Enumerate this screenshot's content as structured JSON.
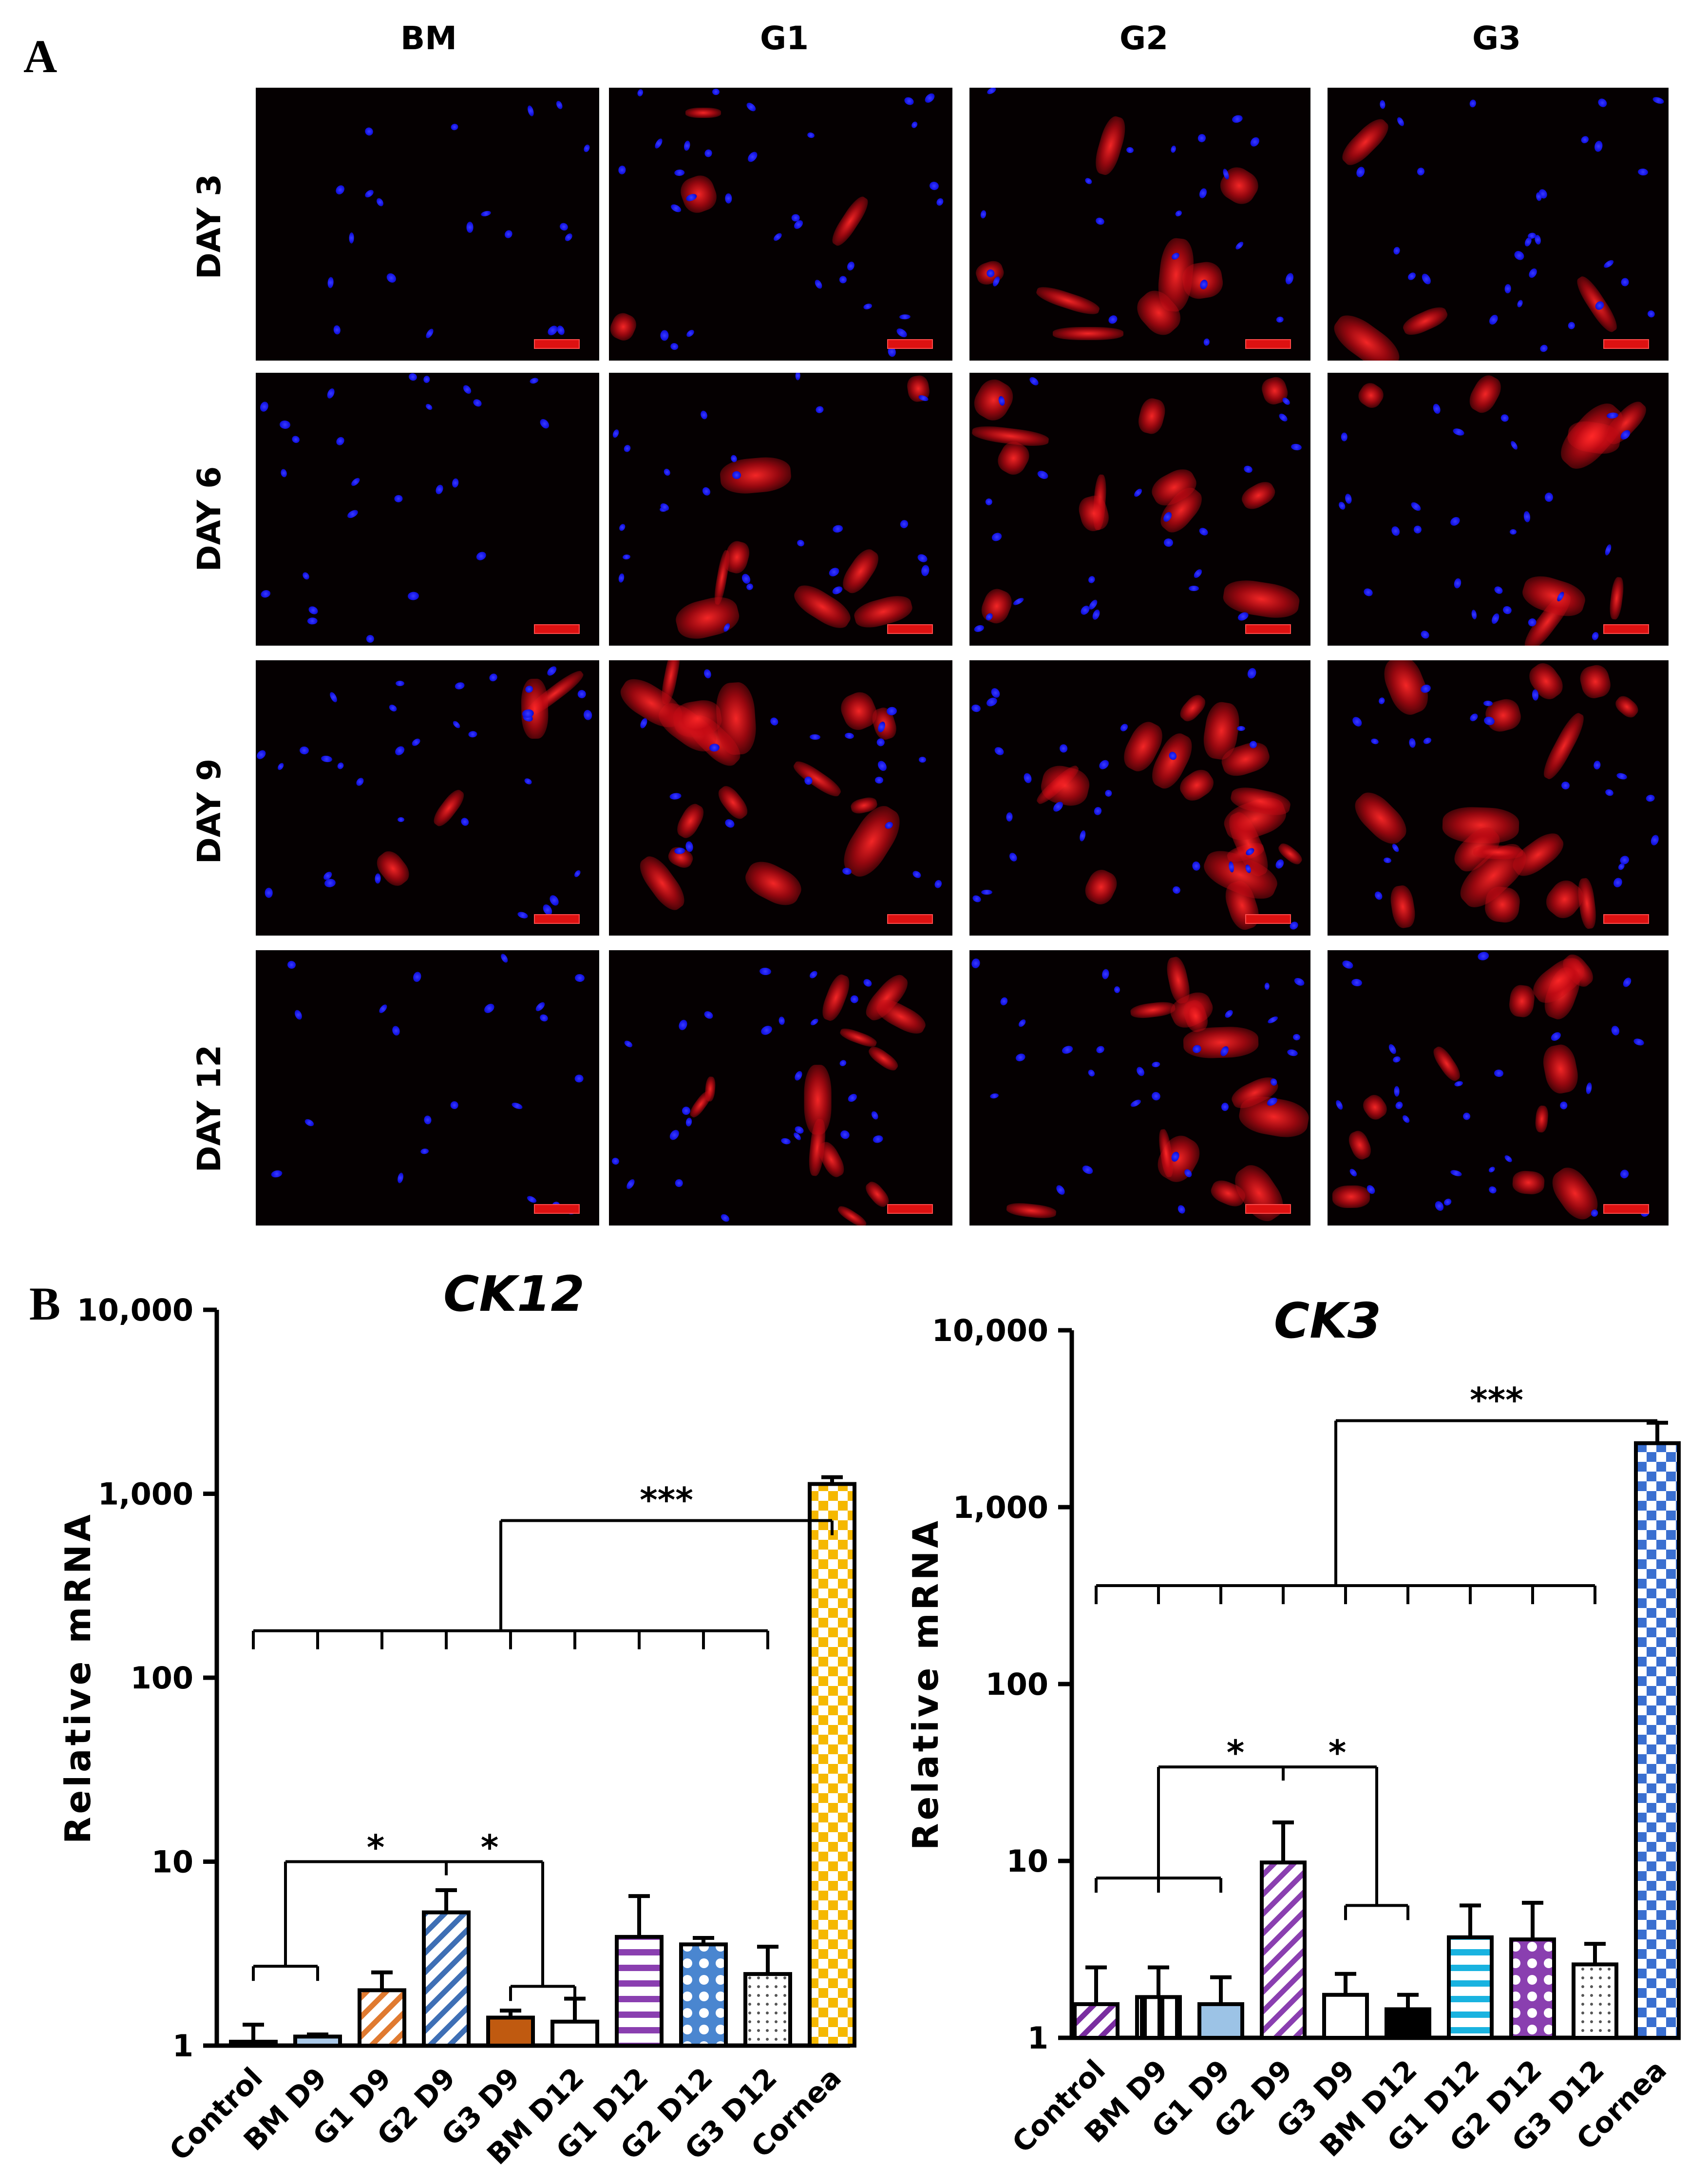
{
  "panel_a": {
    "letter": "A",
    "columns": [
      "BM",
      "G1",
      "G2",
      "G3"
    ],
    "rows": [
      "DAY 3",
      "DAY 6",
      "DAY 9",
      "DAY 12"
    ],
    "description_colors": {
      "nuclei": "#1a1aff",
      "stain": "#e01a1a",
      "background": "#050001",
      "scale_bar": "#dd1111"
    },
    "red_level": [
      [
        0,
        1,
        2,
        1
      ],
      [
        0,
        2,
        3,
        2
      ],
      [
        1,
        4,
        4,
        4
      ],
      [
        0,
        3,
        3,
        3
      ]
    ]
  },
  "panel_b": {
    "letter": "B"
  },
  "chart_data": [
    {
      "type": "bar",
      "title": "CK12",
      "ylabel": "Relative mRNA",
      "xlabel": "",
      "yscale": "log",
      "ylim": [
        1,
        10000
      ],
      "yticks": [
        1,
        10,
        100,
        1000,
        10000
      ],
      "ytick_labels": [
        "1",
        "10",
        "100",
        "1,000",
        "10,000"
      ],
      "categories": [
        "Control",
        "BM D9",
        "G1 D9",
        "G2 D9",
        "G3 D9",
        "BM D12",
        "G1 D12",
        "G2 D12",
        "G3 D12",
        "Cornea"
      ],
      "values": [
        1.05,
        1.12,
        2.0,
        5.3,
        1.42,
        1.35,
        3.9,
        3.55,
        2.45,
        1130
      ],
      "error_upper": [
        1.3,
        1.15,
        2.5,
        7.0,
        1.55,
        1.8,
        6.5,
        3.85,
        3.45,
        1230
      ],
      "fill": [
        "solid",
        "solid",
        "diag-right",
        "diag-right",
        "solid",
        "solid",
        "horizontal",
        "circles",
        "dots",
        "checker"
      ],
      "colors": [
        "#6b9bd3",
        "#a9c8e8",
        "#e07a30",
        "#3e6fb5",
        "#c05a10",
        "#ffffff",
        "#8a3fb0",
        "#4a86d0",
        "#555555",
        "#f5b800"
      ],
      "significance": [
        {
          "label": "*",
          "from": "Control|BM D9",
          "to": "G2 D9"
        },
        {
          "label": "*",
          "from": "G2 D9",
          "to": "G3 D9|BM D12"
        },
        {
          "label": "***",
          "from": "Control..G3 D12",
          "to": "Cornea"
        }
      ]
    },
    {
      "type": "bar",
      "title": "CK3",
      "ylabel": "Relative mRNA",
      "xlabel": "",
      "yscale": "log",
      "ylim": [
        1,
        10000
      ],
      "yticks": [
        1,
        10,
        100,
        1000,
        10000
      ],
      "ytick_labels": [
        "1",
        "10",
        "100",
        "1,000",
        "10,000"
      ],
      "categories": [
        "Control",
        "BM D9",
        "G1 D9",
        "G2 D9",
        "G3 D9",
        "BM D12",
        "G1 D12",
        "G2 D12",
        "G3 D12",
        "Cornea"
      ],
      "values": [
        1.55,
        1.7,
        1.55,
        9.8,
        1.75,
        1.45,
        3.7,
        3.6,
        2.6,
        2300
      ],
      "error_upper": [
        2.5,
        2.5,
        2.2,
        16.5,
        2.3,
        1.75,
        5.6,
        5.8,
        3.4,
        3000
      ],
      "fill": [
        "diag-right",
        "vertical",
        "solid",
        "diag-right",
        "solid",
        "solid",
        "horizontal",
        "circles",
        "dots",
        "checker"
      ],
      "colors": [
        "#7a2da0",
        "#000000",
        "#9cc3e6",
        "#8a3fb0",
        "#ffffff",
        "#000000",
        "#19b3e0",
        "#8a3fb0",
        "#555555",
        "#3a6fd0"
      ],
      "significance": [
        {
          "label": "*",
          "from": "BM D9|G1 D9",
          "to": "G2 D9"
        },
        {
          "label": "*",
          "from": "G2 D9",
          "to": "G3 D9|BM D12"
        },
        {
          "label": "***",
          "from": "Control..G3 D12",
          "to": "Cornea"
        }
      ]
    }
  ]
}
